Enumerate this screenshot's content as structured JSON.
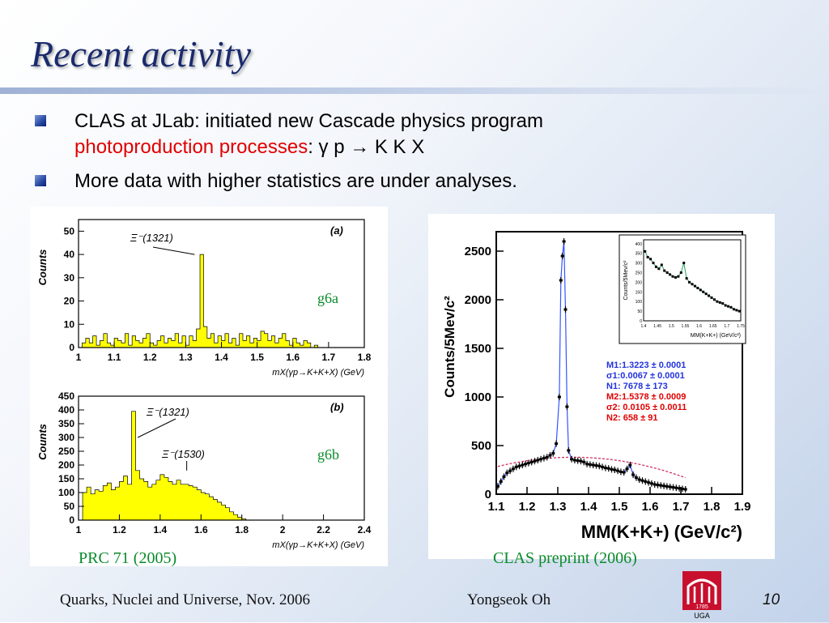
{
  "slide": {
    "title": "Recent activity",
    "bullets": [
      {
        "line1": "CLAS at JLab: initiated new Cascade physics program",
        "line2_red": "photoproduction processes",
        "line2_rest": ": γ p → K K X"
      },
      {
        "line1": "More data with higher statistics are under analyses."
      }
    ]
  },
  "figures": {
    "g6a_label": "g6a",
    "g6b_label": "g6b",
    "left_caption": "PRC 71 (2005)",
    "right_caption": "CLAS preprint (2006)"
  },
  "footer": {
    "left": "Quarks, Nuclei and Universe, Nov. 2006",
    "author": "Yongseok Oh",
    "page": "10",
    "logo_text": "UGA",
    "logo_year": "1785"
  },
  "colors": {
    "hist_fill": "#ffff00",
    "title": "#1a2a6c",
    "highlight": "#e00000",
    "stamp": "#0a8a2a"
  },
  "chart_data": [
    {
      "type": "bar",
      "panel": "(a)",
      "ylabel": "Counts",
      "xlabel": "mX(γp→K+K+X) (GeV)",
      "xlim": [
        1.0,
        1.8
      ],
      "ylim": [
        0,
        55
      ],
      "xticks": [
        "1",
        "1.1",
        "1.2",
        "1.3",
        "1.4",
        "1.5",
        "1.6",
        "1.7",
        "1.8"
      ],
      "yticks": [
        "0",
        "10",
        "20",
        "30",
        "40",
        "50"
      ],
      "annotations": [
        "Ξ⁻(1321)"
      ],
      "bin_start": 1.0,
      "bin_width": 0.01,
      "values": [
        0,
        2,
        4,
        2,
        5,
        1,
        3,
        6,
        2,
        1,
        4,
        3,
        2,
        6,
        1,
        5,
        3,
        2,
        4,
        6,
        2,
        1,
        3,
        5,
        2,
        4,
        3,
        6,
        2,
        5,
        1,
        5,
        3,
        8,
        40,
        9,
        4,
        6,
        2,
        5,
        3,
        6,
        2,
        4,
        1,
        6,
        3,
        5,
        2,
        4,
        3,
        7,
        6,
        3,
        5,
        2,
        4,
        6,
        3,
        1,
        4,
        2,
        1,
        3,
        2,
        0,
        1,
        0,
        0,
        0,
        0,
        0,
        0,
        0,
        0,
        0,
        0,
        0,
        0,
        0
      ]
    },
    {
      "type": "bar",
      "panel": "(b)",
      "ylabel": "Counts",
      "xlabel": "mX(γp→K+K+X) (GeV)",
      "xlim": [
        1.0,
        2.4
      ],
      "ylim": [
        0,
        450
      ],
      "xticks": [
        "1",
        "1.2",
        "1.4",
        "1.6",
        "1.8",
        "2",
        "2.2",
        "2.4"
      ],
      "yticks": [
        "0",
        "50",
        "100",
        "150",
        "200",
        "250",
        "300",
        "350",
        "400",
        "450"
      ],
      "annotations": [
        "Ξ⁻(1321)",
        "Ξ⁻(1530)"
      ],
      "bin_start": 1.0,
      "bin_width": 0.02,
      "values": [
        0,
        100,
        120,
        95,
        110,
        105,
        125,
        135,
        110,
        120,
        140,
        160,
        130,
        395,
        180,
        150,
        140,
        120,
        130,
        145,
        165,
        155,
        140,
        130,
        145,
        130,
        130,
        125,
        120,
        110,
        100,
        95,
        85,
        75,
        65,
        55,
        45,
        30,
        20,
        10,
        5,
        0,
        0,
        0,
        0,
        0,
        0,
        0,
        0,
        0,
        0,
        0,
        0,
        0,
        0,
        0,
        0,
        0,
        0,
        0,
        0,
        0,
        0,
        0,
        0,
        0,
        0,
        0,
        0,
        0
      ]
    },
    {
      "type": "scatter",
      "xlabel": "MM(K+K+) (GeV/c²)",
      "ylabel": "Counts/5Mev/c²",
      "xlim": [
        1.1,
        1.9
      ],
      "ylim": [
        0,
        2700
      ],
      "xticks": [
        "1.1",
        "1.2",
        "1.3",
        "1.4",
        "1.5",
        "1.6",
        "1.7",
        "1.8",
        "1.9"
      ],
      "yticks": [
        "0",
        "500",
        "1000",
        "1500",
        "2000",
        "2500"
      ],
      "fit_results": [
        {
          "text": "M1:1.3223 ± 0.0001",
          "color": "blue"
        },
        {
          "text": "σ1:0.0067 ± 0.0001",
          "color": "blue"
        },
        {
          "text": "N1: 7678 ± 173",
          "color": "blue"
        },
        {
          "text": "M2:1.5378 ± 0.0009",
          "color": "red"
        },
        {
          "text": "σ2: 0.0105 ± 0.0011",
          "color": "red"
        },
        {
          "text": "N2: 658 ± 91",
          "color": "red"
        }
      ],
      "x": [
        1.105,
        1.115,
        1.125,
        1.135,
        1.145,
        1.155,
        1.165,
        1.175,
        1.185,
        1.195,
        1.205,
        1.215,
        1.225,
        1.235,
        1.245,
        1.255,
        1.265,
        1.275,
        1.285,
        1.295,
        1.305,
        1.31,
        1.315,
        1.32,
        1.325,
        1.33,
        1.335,
        1.345,
        1.355,
        1.365,
        1.375,
        1.385,
        1.395,
        1.405,
        1.415,
        1.425,
        1.435,
        1.445,
        1.455,
        1.465,
        1.475,
        1.485,
        1.495,
        1.505,
        1.515,
        1.525,
        1.535,
        1.545,
        1.555,
        1.565,
        1.575,
        1.585,
        1.595,
        1.605,
        1.615,
        1.625,
        1.635,
        1.645,
        1.655,
        1.665,
        1.675,
        1.685,
        1.695,
        1.705,
        1.715
      ],
      "y": [
        80,
        130,
        180,
        220,
        240,
        260,
        280,
        290,
        300,
        310,
        320,
        330,
        340,
        350,
        360,
        370,
        380,
        400,
        420,
        520,
        1000,
        2200,
        2450,
        2600,
        1900,
        900,
        450,
        360,
        350,
        345,
        340,
        330,
        310,
        305,
        300,
        295,
        290,
        280,
        270,
        265,
        255,
        250,
        240,
        230,
        225,
        260,
        300,
        200,
        170,
        150,
        140,
        130,
        120,
        110,
        100,
        95,
        90,
        85,
        80,
        75,
        70,
        65,
        60,
        55,
        50
      ],
      "inset": {
        "xlabel": "MM(K+K+) (GeV/c²)",
        "ylabel": "Counts/5Mev/c²",
        "xlim": [
          1.4,
          1.75
        ],
        "ylim": [
          0,
          420
        ],
        "xticks": [
          "1.4",
          "1.45",
          "1.5",
          "1.55",
          "1.6",
          "1.65",
          "1.7",
          "1.75"
        ],
        "yticks": [
          "0",
          "50",
          "100",
          "150",
          "200",
          "250",
          "300",
          "350",
          "400"
        ],
        "x": [
          1.405,
          1.415,
          1.425,
          1.435,
          1.445,
          1.455,
          1.465,
          1.475,
          1.485,
          1.495,
          1.505,
          1.515,
          1.525,
          1.535,
          1.545,
          1.555,
          1.565,
          1.575,
          1.585,
          1.595,
          1.605,
          1.615,
          1.625,
          1.635,
          1.645,
          1.655,
          1.665,
          1.675,
          1.685,
          1.695,
          1.705,
          1.715,
          1.725,
          1.735,
          1.745
        ],
        "y": [
          360,
          330,
          320,
          300,
          280,
          270,
          290,
          260,
          250,
          240,
          230,
          225,
          230,
          250,
          300,
          220,
          200,
          190,
          180,
          170,
          160,
          150,
          140,
          130,
          120,
          110,
          100,
          95,
          90,
          80,
          75,
          70,
          60,
          55,
          50
        ]
      }
    }
  ]
}
